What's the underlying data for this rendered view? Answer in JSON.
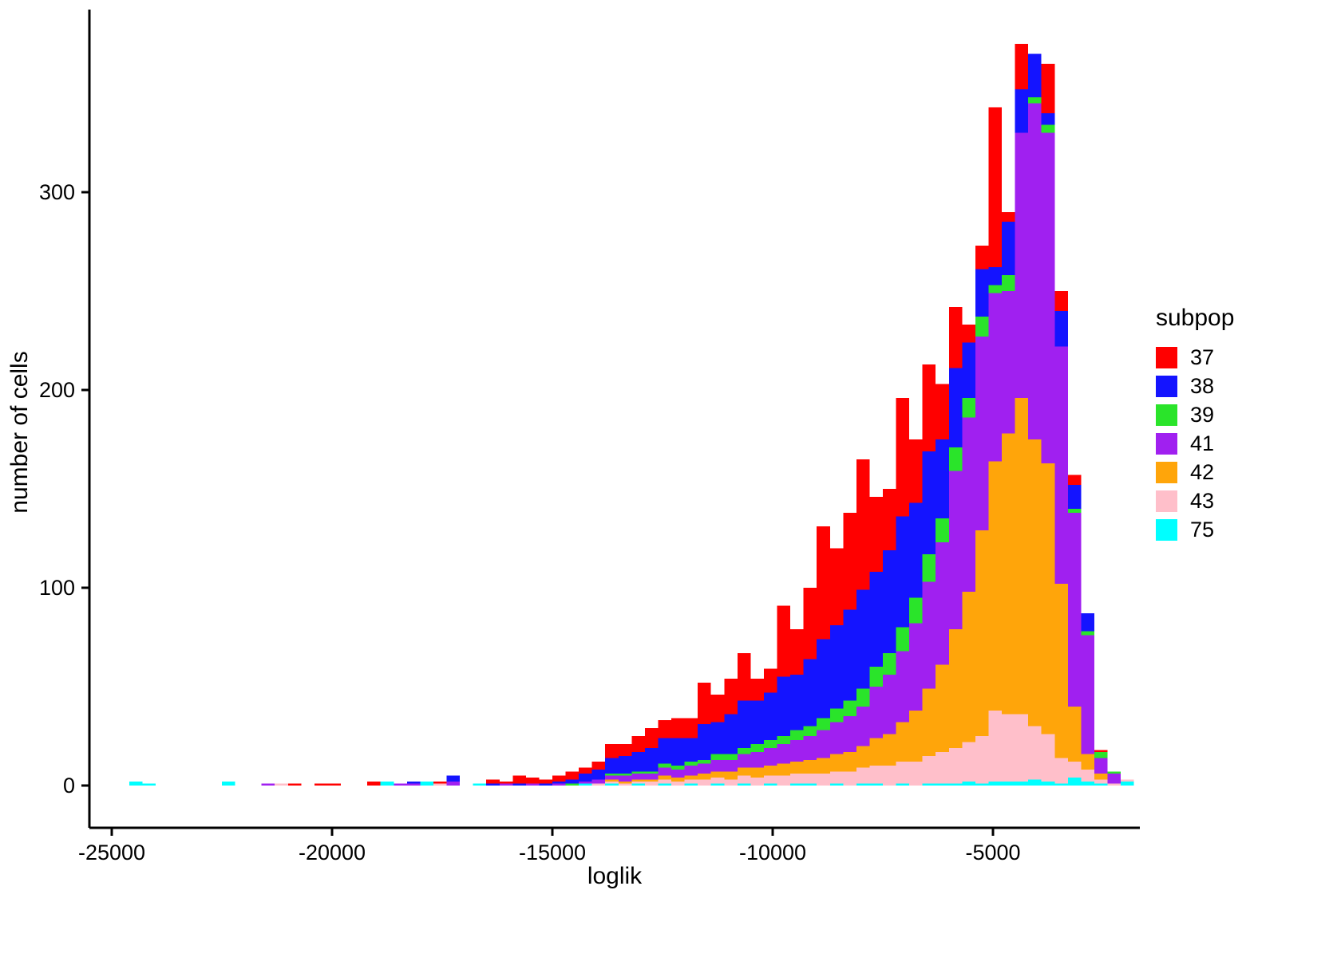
{
  "chart_data": {
    "type": "bar",
    "subtype": "stacked-histogram",
    "title": "",
    "xlabel": "loglik",
    "ylabel": "number of cells",
    "legend_title": "subpop",
    "legend_position": "right",
    "grid": false,
    "x_ticks": [
      -25000,
      -20000,
      -15000,
      -10000,
      -5000
    ],
    "y_ticks": [
      0,
      100,
      200,
      300
    ],
    "x_domain": [
      -25550,
      -1700
    ],
    "y_domain": [
      0,
      392
    ],
    "bin_width": 300,
    "subpops": [
      {
        "name": "37",
        "color": "#ff0000"
      },
      {
        "name": "38",
        "color": "#1414ff"
      },
      {
        "name": "39",
        "color": "#2ae42a"
      },
      {
        "name": "41",
        "color": "#a020f0"
      },
      {
        "name": "42",
        "color": "#ffa50a"
      },
      {
        "name": "43",
        "color": "#ffbfca"
      },
      {
        "name": "75",
        "color": "#00ffff"
      }
    ],
    "stack_order_bottom_to_top": [
      "75",
      "43",
      "42",
      "41",
      "39",
      "38",
      "37"
    ],
    "bins_note": "stack arrays are counts in bottom-to-top order [75,43,42,41,39,38,37]; x is bin center on loglik axis",
    "bins": [
      {
        "x": -24450,
        "stack": [
          2,
          0,
          0,
          0,
          0,
          0,
          0
        ]
      },
      {
        "x": -24150,
        "stack": [
          1,
          0,
          0,
          0,
          0,
          0,
          0
        ]
      },
      {
        "x": -22350,
        "stack": [
          2,
          0,
          0,
          0,
          0,
          0,
          0
        ]
      },
      {
        "x": -21450,
        "stack": [
          0,
          0,
          0,
          1,
          0,
          0,
          0
        ]
      },
      {
        "x": -21150,
        "stack": [
          0,
          1,
          0,
          0,
          0,
          0,
          0
        ]
      },
      {
        "x": -20850,
        "stack": [
          0,
          0,
          0,
          0,
          0,
          0,
          1
        ]
      },
      {
        "x": -20250,
        "stack": [
          0,
          0,
          0,
          0,
          0,
          0,
          1
        ]
      },
      {
        "x": -19950,
        "stack": [
          0,
          0,
          0,
          0,
          0,
          0,
          1
        ]
      },
      {
        "x": -19050,
        "stack": [
          0,
          0,
          0,
          0,
          0,
          0,
          2
        ]
      },
      {
        "x": -18750,
        "stack": [
          2,
          0,
          0,
          0,
          0,
          0,
          0
        ]
      },
      {
        "x": -18450,
        "stack": [
          0,
          0,
          0,
          1,
          0,
          0,
          0
        ]
      },
      {
        "x": -18150,
        "stack": [
          0,
          0,
          0,
          1,
          0,
          1,
          0
        ]
      },
      {
        "x": -17850,
        "stack": [
          2,
          0,
          0,
          0,
          0,
          0,
          0
        ]
      },
      {
        "x": -17550,
        "stack": [
          0,
          1,
          0,
          0,
          0,
          0,
          1
        ]
      },
      {
        "x": -17250,
        "stack": [
          0,
          0,
          0,
          2,
          0,
          3,
          0
        ]
      },
      {
        "x": -16650,
        "stack": [
          1,
          0,
          0,
          0,
          0,
          0,
          0
        ]
      },
      {
        "x": -16350,
        "stack": [
          0,
          0,
          0,
          0,
          0,
          1,
          2
        ]
      },
      {
        "x": -16050,
        "stack": [
          0,
          0,
          0,
          1,
          0,
          0,
          1
        ]
      },
      {
        "x": -15750,
        "stack": [
          0,
          0,
          0,
          0,
          0,
          1,
          4
        ]
      },
      {
        "x": -15450,
        "stack": [
          0,
          0,
          0,
          1,
          0,
          0,
          3
        ]
      },
      {
        "x": -15150,
        "stack": [
          0,
          0,
          0,
          0,
          0,
          1,
          2
        ]
      },
      {
        "x": -14850,
        "stack": [
          0,
          0,
          0,
          1,
          0,
          1,
          3
        ]
      },
      {
        "x": -14550,
        "stack": [
          0,
          0,
          0,
          0,
          1,
          2,
          4
        ]
      },
      {
        "x": -14250,
        "stack": [
          1,
          0,
          0,
          1,
          0,
          4,
          3
        ]
      },
      {
        "x": -13950,
        "stack": [
          0,
          1,
          0,
          2,
          0,
          5,
          4
        ]
      },
      {
        "x": -13650,
        "stack": [
          1,
          1,
          1,
          2,
          1,
          8,
          7
        ]
      },
      {
        "x": -13350,
        "stack": [
          0,
          1,
          1,
          3,
          1,
          9,
          6
        ]
      },
      {
        "x": -13050,
        "stack": [
          1,
          1,
          1,
          3,
          1,
          10,
          8
        ]
      },
      {
        "x": -12750,
        "stack": [
          0,
          2,
          1,
          3,
          1,
          12,
          10
        ]
      },
      {
        "x": -12450,
        "stack": [
          1,
          2,
          2,
          4,
          2,
          13,
          9
        ]
      },
      {
        "x": -12150,
        "stack": [
          0,
          2,
          2,
          4,
          2,
          14,
          10
        ]
      },
      {
        "x": -11850,
        "stack": [
          1,
          2,
          2,
          5,
          2,
          12,
          10
        ]
      },
      {
        "x": -11550,
        "stack": [
          0,
          3,
          3,
          5,
          2,
          18,
          21
        ]
      },
      {
        "x": -11250,
        "stack": [
          1,
          3,
          3,
          6,
          3,
          16,
          14
        ]
      },
      {
        "x": -10950,
        "stack": [
          0,
          3,
          4,
          6,
          3,
          20,
          18
        ]
      },
      {
        "x": -10650,
        "stack": [
          1,
          4,
          4,
          7,
          3,
          24,
          24
        ]
      },
      {
        "x": -10350,
        "stack": [
          0,
          4,
          5,
          8,
          4,
          22,
          11
        ]
      },
      {
        "x": -10050,
        "stack": [
          1,
          4,
          5,
          9,
          4,
          24,
          12
        ]
      },
      {
        "x": -9750,
        "stack": [
          0,
          5,
          6,
          10,
          4,
          30,
          36
        ]
      },
      {
        "x": -9450,
        "stack": [
          1,
          5,
          6,
          11,
          5,
          28,
          23
        ]
      },
      {
        "x": -9150,
        "stack": [
          1,
          5,
          7,
          12,
          5,
          34,
          36
        ]
      },
      {
        "x": -8850,
        "stack": [
          0,
          6,
          8,
          14,
          6,
          40,
          57
        ]
      },
      {
        "x": -8550,
        "stack": [
          1,
          6,
          9,
          16,
          7,
          42,
          39
        ]
      },
      {
        "x": -8250,
        "stack": [
          0,
          7,
          10,
          18,
          8,
          46,
          49
        ]
      },
      {
        "x": -7950,
        "stack": [
          1,
          8,
          11,
          20,
          9,
          50,
          66
        ]
      },
      {
        "x": -7650,
        "stack": [
          1,
          9,
          14,
          26,
          10,
          48,
          38
        ]
      },
      {
        "x": -7350,
        "stack": [
          0,
          10,
          16,
          30,
          11,
          52,
          31
        ]
      },
      {
        "x": -7050,
        "stack": [
          1,
          11,
          20,
          36,
          12,
          56,
          60
        ]
      },
      {
        "x": -6750,
        "stack": [
          0,
          12,
          26,
          44,
          13,
          48,
          32
        ]
      },
      {
        "x": -6450,
        "stack": [
          1,
          14,
          34,
          54,
          14,
          52,
          44
        ]
      },
      {
        "x": -6150,
        "stack": [
          1,
          16,
          44,
          62,
          12,
          40,
          28
        ]
      },
      {
        "x": -5850,
        "stack": [
          1,
          18,
          60,
          80,
          12,
          40,
          31
        ]
      },
      {
        "x": -5550,
        "stack": [
          2,
          20,
          76,
          88,
          10,
          28,
          9
        ]
      },
      {
        "x": -5250,
        "stack": [
          1,
          24,
          104,
          98,
          10,
          24,
          12
        ]
      },
      {
        "x": -4950,
        "stack": [
          2,
          36,
          126,
          85,
          4,
          9,
          81
        ]
      },
      {
        "x": -4650,
        "stack": [
          2,
          34,
          142,
          72,
          8,
          27,
          5
        ]
      },
      {
        "x": -4350,
        "stack": [
          2,
          34,
          160,
          134,
          0,
          22,
          23
        ]
      },
      {
        "x": -4050,
        "stack": [
          3,
          27,
          145,
          170,
          3,
          22,
          0
        ]
      },
      {
        "x": -3750,
        "stack": [
          2,
          24,
          137,
          167,
          4,
          6,
          25
        ]
      },
      {
        "x": -3450,
        "stack": [
          1,
          13,
          88,
          120,
          0,
          18,
          10
        ]
      },
      {
        "x": -3150,
        "stack": [
          4,
          8,
          28,
          98,
          2,
          12,
          5
        ]
      },
      {
        "x": -2850,
        "stack": [
          2,
          6,
          8,
          60,
          2,
          9,
          0
        ]
      },
      {
        "x": -2550,
        "stack": [
          1,
          2,
          3,
          8,
          3,
          0,
          1
        ]
      },
      {
        "x": -2250,
        "stack": [
          0,
          1,
          0,
          5,
          1,
          0,
          0
        ]
      },
      {
        "x": -1950,
        "stack": [
          2,
          1,
          0,
          0,
          0,
          0,
          0
        ]
      }
    ]
  }
}
